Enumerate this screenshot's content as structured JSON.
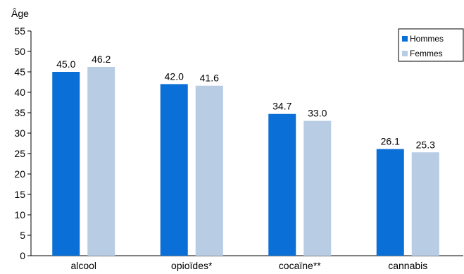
{
  "chart_data": {
    "type": "bar",
    "ylabel": "Âge",
    "xlabel": "",
    "ylim": [
      0,
      55
    ],
    "yticks": [
      0,
      5,
      10,
      15,
      20,
      25,
      30,
      35,
      40,
      45,
      50,
      55
    ],
    "grid": false,
    "legend_position": "top-right",
    "categories": [
      "alcool",
      "opioïdes*",
      "cocaïne**",
      "cannabis"
    ],
    "series": [
      {
        "name": "Hommes",
        "color": "#0a6fd6",
        "values": [
          45.0,
          42.0,
          34.7,
          26.1
        ]
      },
      {
        "name": "Femmes",
        "color": "#b8cce4",
        "values": [
          46.2,
          41.6,
          33.0,
          25.3
        ]
      }
    ]
  }
}
